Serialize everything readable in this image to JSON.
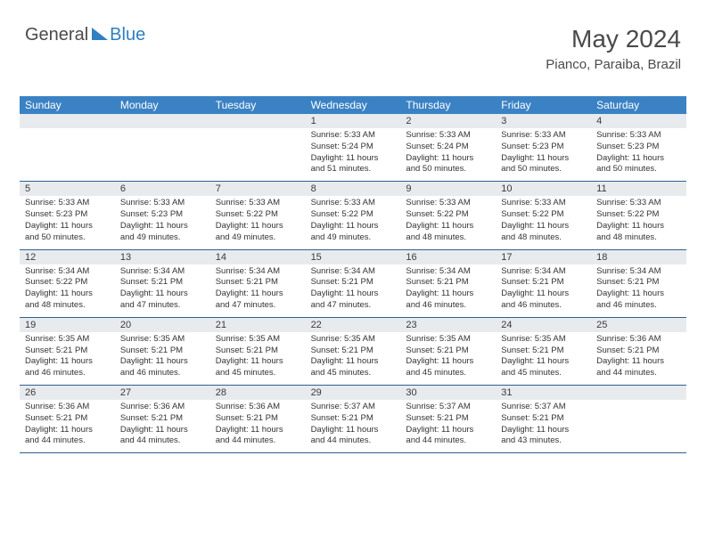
{
  "logo": {
    "part1": "General",
    "part2": "Blue"
  },
  "header": {
    "title": "May 2024",
    "location": "Pianco, Paraiba, Brazil"
  },
  "colors": {
    "header_bg": "#3b82c4",
    "header_text": "#ffffff",
    "daynum_bg": "#e8ebee",
    "week_border": "#2f5f8f",
    "logo_accent": "#2f7fc1",
    "text_dark": "#4a4a4a"
  },
  "day_names": [
    "Sunday",
    "Monday",
    "Tuesday",
    "Wednesday",
    "Thursday",
    "Friday",
    "Saturday"
  ],
  "weeks": [
    [
      {
        "n": "",
        "lines": [
          "",
          "",
          "",
          ""
        ]
      },
      {
        "n": "",
        "lines": [
          "",
          "",
          "",
          ""
        ]
      },
      {
        "n": "",
        "lines": [
          "",
          "",
          "",
          ""
        ]
      },
      {
        "n": "1",
        "lines": [
          "Sunrise: 5:33 AM",
          "Sunset: 5:24 PM",
          "Daylight: 11 hours",
          "and 51 minutes."
        ]
      },
      {
        "n": "2",
        "lines": [
          "Sunrise: 5:33 AM",
          "Sunset: 5:24 PM",
          "Daylight: 11 hours",
          "and 50 minutes."
        ]
      },
      {
        "n": "3",
        "lines": [
          "Sunrise: 5:33 AM",
          "Sunset: 5:23 PM",
          "Daylight: 11 hours",
          "and 50 minutes."
        ]
      },
      {
        "n": "4",
        "lines": [
          "Sunrise: 5:33 AM",
          "Sunset: 5:23 PM",
          "Daylight: 11 hours",
          "and 50 minutes."
        ]
      }
    ],
    [
      {
        "n": "5",
        "lines": [
          "Sunrise: 5:33 AM",
          "Sunset: 5:23 PM",
          "Daylight: 11 hours",
          "and 50 minutes."
        ]
      },
      {
        "n": "6",
        "lines": [
          "Sunrise: 5:33 AM",
          "Sunset: 5:23 PM",
          "Daylight: 11 hours",
          "and 49 minutes."
        ]
      },
      {
        "n": "7",
        "lines": [
          "Sunrise: 5:33 AM",
          "Sunset: 5:22 PM",
          "Daylight: 11 hours",
          "and 49 minutes."
        ]
      },
      {
        "n": "8",
        "lines": [
          "Sunrise: 5:33 AM",
          "Sunset: 5:22 PM",
          "Daylight: 11 hours",
          "and 49 minutes."
        ]
      },
      {
        "n": "9",
        "lines": [
          "Sunrise: 5:33 AM",
          "Sunset: 5:22 PM",
          "Daylight: 11 hours",
          "and 48 minutes."
        ]
      },
      {
        "n": "10",
        "lines": [
          "Sunrise: 5:33 AM",
          "Sunset: 5:22 PM",
          "Daylight: 11 hours",
          "and 48 minutes."
        ]
      },
      {
        "n": "11",
        "lines": [
          "Sunrise: 5:33 AM",
          "Sunset: 5:22 PM",
          "Daylight: 11 hours",
          "and 48 minutes."
        ]
      }
    ],
    [
      {
        "n": "12",
        "lines": [
          "Sunrise: 5:34 AM",
          "Sunset: 5:22 PM",
          "Daylight: 11 hours",
          "and 48 minutes."
        ]
      },
      {
        "n": "13",
        "lines": [
          "Sunrise: 5:34 AM",
          "Sunset: 5:21 PM",
          "Daylight: 11 hours",
          "and 47 minutes."
        ]
      },
      {
        "n": "14",
        "lines": [
          "Sunrise: 5:34 AM",
          "Sunset: 5:21 PM",
          "Daylight: 11 hours",
          "and 47 minutes."
        ]
      },
      {
        "n": "15",
        "lines": [
          "Sunrise: 5:34 AM",
          "Sunset: 5:21 PM",
          "Daylight: 11 hours",
          "and 47 minutes."
        ]
      },
      {
        "n": "16",
        "lines": [
          "Sunrise: 5:34 AM",
          "Sunset: 5:21 PM",
          "Daylight: 11 hours",
          "and 46 minutes."
        ]
      },
      {
        "n": "17",
        "lines": [
          "Sunrise: 5:34 AM",
          "Sunset: 5:21 PM",
          "Daylight: 11 hours",
          "and 46 minutes."
        ]
      },
      {
        "n": "18",
        "lines": [
          "Sunrise: 5:34 AM",
          "Sunset: 5:21 PM",
          "Daylight: 11 hours",
          "and 46 minutes."
        ]
      }
    ],
    [
      {
        "n": "19",
        "lines": [
          "Sunrise: 5:35 AM",
          "Sunset: 5:21 PM",
          "Daylight: 11 hours",
          "and 46 minutes."
        ]
      },
      {
        "n": "20",
        "lines": [
          "Sunrise: 5:35 AM",
          "Sunset: 5:21 PM",
          "Daylight: 11 hours",
          "and 46 minutes."
        ]
      },
      {
        "n": "21",
        "lines": [
          "Sunrise: 5:35 AM",
          "Sunset: 5:21 PM",
          "Daylight: 11 hours",
          "and 45 minutes."
        ]
      },
      {
        "n": "22",
        "lines": [
          "Sunrise: 5:35 AM",
          "Sunset: 5:21 PM",
          "Daylight: 11 hours",
          "and 45 minutes."
        ]
      },
      {
        "n": "23",
        "lines": [
          "Sunrise: 5:35 AM",
          "Sunset: 5:21 PM",
          "Daylight: 11 hours",
          "and 45 minutes."
        ]
      },
      {
        "n": "24",
        "lines": [
          "Sunrise: 5:35 AM",
          "Sunset: 5:21 PM",
          "Daylight: 11 hours",
          "and 45 minutes."
        ]
      },
      {
        "n": "25",
        "lines": [
          "Sunrise: 5:36 AM",
          "Sunset: 5:21 PM",
          "Daylight: 11 hours",
          "and 44 minutes."
        ]
      }
    ],
    [
      {
        "n": "26",
        "lines": [
          "Sunrise: 5:36 AM",
          "Sunset: 5:21 PM",
          "Daylight: 11 hours",
          "and 44 minutes."
        ]
      },
      {
        "n": "27",
        "lines": [
          "Sunrise: 5:36 AM",
          "Sunset: 5:21 PM",
          "Daylight: 11 hours",
          "and 44 minutes."
        ]
      },
      {
        "n": "28",
        "lines": [
          "Sunrise: 5:36 AM",
          "Sunset: 5:21 PM",
          "Daylight: 11 hours",
          "and 44 minutes."
        ]
      },
      {
        "n": "29",
        "lines": [
          "Sunrise: 5:37 AM",
          "Sunset: 5:21 PM",
          "Daylight: 11 hours",
          "and 44 minutes."
        ]
      },
      {
        "n": "30",
        "lines": [
          "Sunrise: 5:37 AM",
          "Sunset: 5:21 PM",
          "Daylight: 11 hours",
          "and 44 minutes."
        ]
      },
      {
        "n": "31",
        "lines": [
          "Sunrise: 5:37 AM",
          "Sunset: 5:21 PM",
          "Daylight: 11 hours",
          "and 43 minutes."
        ]
      },
      {
        "n": "",
        "lines": [
          "",
          "",
          "",
          ""
        ]
      }
    ]
  ]
}
